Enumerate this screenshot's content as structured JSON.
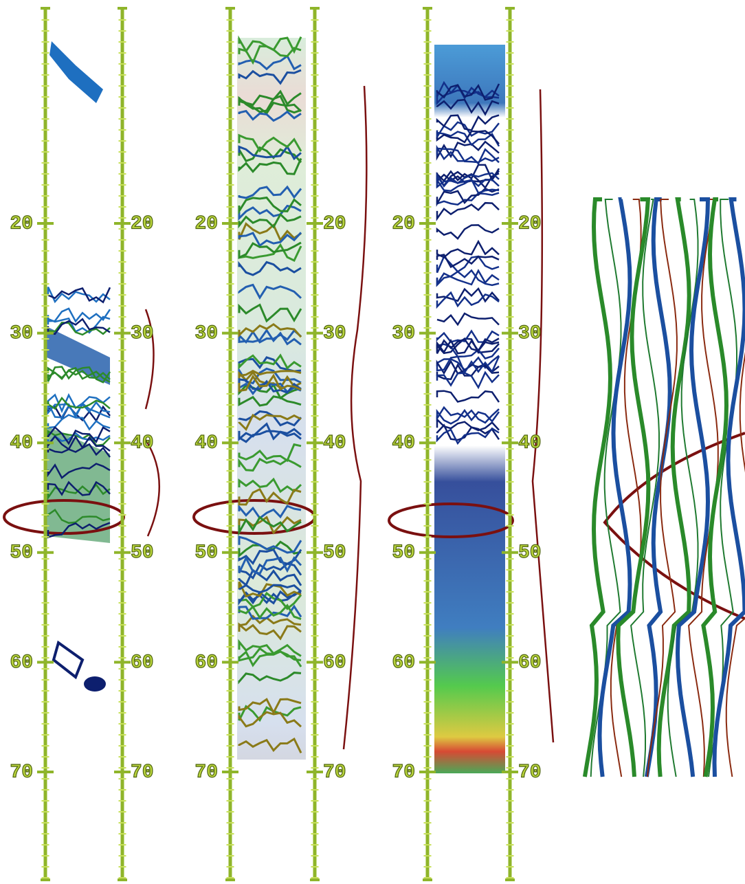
{
  "panels": [
    {
      "left_ticks": [
        20,
        30,
        40,
        50,
        60,
        70
      ],
      "right_ticks": [
        20,
        30,
        40,
        50,
        60,
        70
      ]
    },
    {
      "left_ticks": [
        20,
        30,
        40,
        50,
        60,
        70
      ],
      "right_ticks": [
        20,
        30,
        40,
        50,
        60,
        70
      ]
    },
    {
      "left_ticks": [
        20,
        30,
        40,
        50,
        60,
        70
      ],
      "right_ticks": [
        20,
        30,
        40,
        50,
        60,
        70
      ]
    }
  ]
}
